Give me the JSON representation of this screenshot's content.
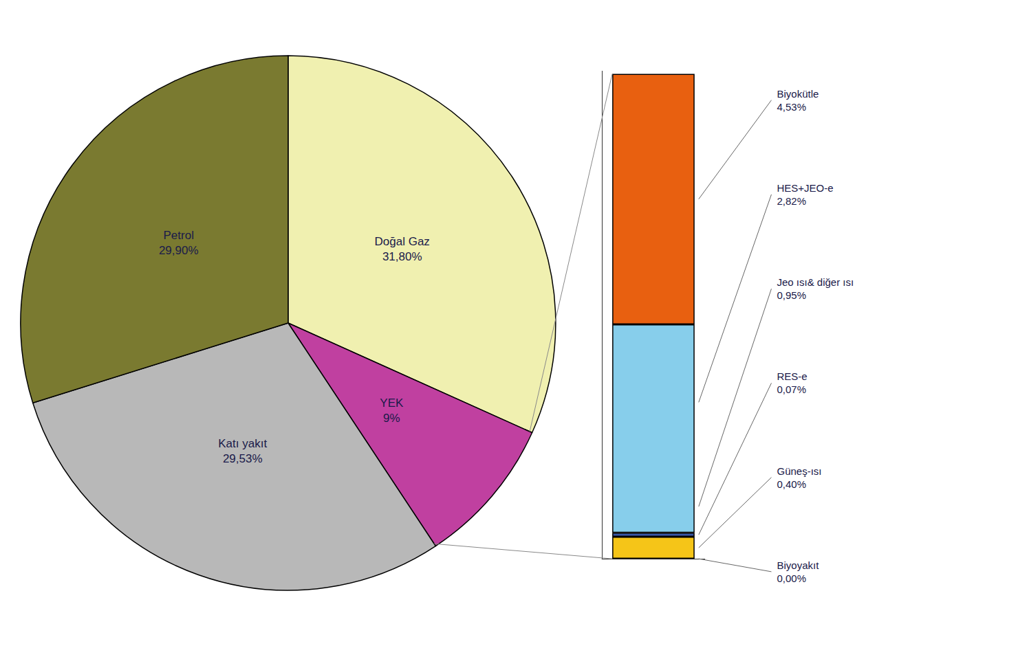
{
  "chart_data": [
    {
      "type": "pie",
      "categories": [
        "Doğal Gaz",
        "YEK",
        "Katı yakıt",
        "Petrol"
      ],
      "values": [
        31.8,
        9.0,
        29.53,
        29.9
      ],
      "value_labels": [
        "31,80%",
        "9%",
        "29,53%",
        "29,90%"
      ],
      "colors": [
        "#f0f0b0",
        "#c040a0",
        "#b8b8b8",
        "#7a7a30"
      ],
      "data_labels": true
    },
    {
      "type": "bar",
      "stacked": true,
      "categories": [
        null
      ],
      "series": [
        {
          "color": "#f5c518",
          "values": [
            0.4
          ]
        },
        {
          "color": "#3a5aad",
          "values": [
            0.07
          ]
        },
        {
          "color": "#87ceeb",
          "values": [
            3.77
          ]
        },
        {
          "color": "#e86010",
          "values": [
            4.53
          ]
        }
      ],
      "ylim": [
        0,
        8.82
      ],
      "tick_labels": false,
      "grid": false,
      "annotations": [
        {
          "text": "Biyokütle\n4,53%",
          "value": 4.53
        },
        {
          "text": "HES+JEO-e\n2,82%",
          "value": 2.82
        },
        {
          "text": "Jeo ısı& diğer ısı\n0,95%",
          "value": 0.95
        },
        {
          "text": "RES-e\n0,07%",
          "value": 0.07
        },
        {
          "text": "Güneş-ısı\n0,40%",
          "value": 0.4
        },
        {
          "text": "Biyoyakıt\n0,00%",
          "value": 0.0
        }
      ]
    }
  ]
}
